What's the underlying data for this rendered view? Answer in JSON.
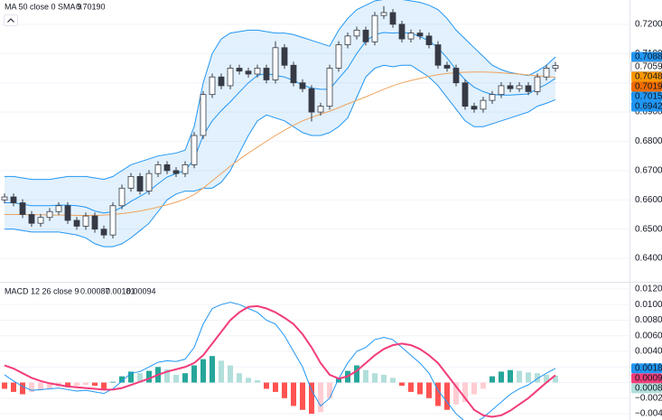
{
  "chart_data": [
    {
      "type": "candlestick",
      "indicator_label": "MA 50 close 0 SMA 9",
      "indicator_value": {
        "value": 0.7019,
        "label": "0.70190",
        "color": "#f57c00"
      },
      "ylim": [
        0.632,
        0.7283
      ],
      "yticks": [
        {
          "value": 0.64,
          "label": "0.64000"
        },
        {
          "value": 0.65,
          "label": "0.65000"
        },
        {
          "value": 0.66,
          "label": "0.66000"
        },
        {
          "value": 0.67,
          "label": "0.67000"
        },
        {
          "value": 0.68,
          "label": "0.68000"
        },
        {
          "value": 0.69,
          "label": "0.69000"
        },
        {
          "value": 0.7,
          "label": "0.70000"
        },
        {
          "value": 0.71,
          "label": "0.71000"
        },
        {
          "value": 0.72,
          "label": "0.72000"
        }
      ],
      "grid": true,
      "up_color": "#ffffff",
      "down_color": "#363a45",
      "wick_color": "#363a45",
      "open": [
        0.66,
        0.661,
        0.659,
        0.655,
        0.652,
        0.654,
        0.656,
        0.658,
        0.653,
        0.651,
        0.6545,
        0.65,
        0.648,
        0.658,
        0.664,
        0.668,
        0.663,
        0.669,
        0.672,
        0.67,
        0.669,
        0.672,
        0.682,
        0.696,
        0.702,
        0.699,
        0.705,
        0.704,
        0.703,
        0.705,
        0.701,
        0.712,
        0.706,
        0.7,
        0.698,
        0.69,
        0.692,
        0.705,
        0.713,
        0.716,
        0.718,
        0.714,
        0.723,
        0.724,
        0.72,
        0.715,
        0.717,
        0.716,
        0.713,
        0.706,
        0.705,
        0.7,
        0.692,
        0.691,
        0.694,
        0.696,
        0.699,
        0.698,
        0.699,
        0.697,
        0.702,
        0.705
      ],
      "high": [
        0.6622,
        0.6622,
        0.6602,
        0.6562,
        0.6552,
        0.6572,
        0.6592,
        0.6592,
        0.6542,
        0.6557,
        0.6557,
        0.6512,
        0.6592,
        0.6652,
        0.6692,
        0.6692,
        0.6702,
        0.6732,
        0.6732,
        0.6712,
        0.6732,
        0.6832,
        0.6972,
        0.7032,
        0.7032,
        0.7062,
        0.7062,
        0.7052,
        0.7062,
        0.7062,
        0.7142,
        0.7132,
        0.7072,
        0.7012,
        0.6992,
        0.6932,
        0.7062,
        0.7142,
        0.7172,
        0.7192,
        0.7192,
        0.7242,
        0.7262,
        0.7252,
        0.7212,
        0.7182,
        0.7182,
        0.7172,
        0.7142,
        0.7072,
        0.7062,
        0.7012,
        0.6932,
        0.6952,
        0.6972,
        0.7002,
        0.7002,
        0.7002,
        0.7002,
        0.7032,
        0.7062,
        0.7071
      ],
      "low": [
        0.6588,
        0.6578,
        0.6538,
        0.6508,
        0.6508,
        0.6528,
        0.6548,
        0.6518,
        0.6498,
        0.6498,
        0.6488,
        0.6468,
        0.6468,
        0.6568,
        0.6628,
        0.6618,
        0.6618,
        0.6678,
        0.6688,
        0.6678,
        0.6678,
        0.6708,
        0.6808,
        0.6948,
        0.6978,
        0.6978,
        0.7028,
        0.7018,
        0.7018,
        0.6998,
        0.6998,
        0.7048,
        0.6988,
        0.6968,
        0.6868,
        0.6888,
        0.6908,
        0.7038,
        0.7118,
        0.7148,
        0.7128,
        0.7128,
        0.7218,
        0.7188,
        0.7138,
        0.7138,
        0.7148,
        0.7118,
        0.7048,
        0.7038,
        0.6988,
        0.6908,
        0.6898,
        0.6898,
        0.6928,
        0.6948,
        0.6968,
        0.6968,
        0.6958,
        0.6958,
        0.7008,
        0.7038
      ],
      "close": [
        0.661,
        0.659,
        0.655,
        0.652,
        0.654,
        0.656,
        0.658,
        0.653,
        0.651,
        0.6545,
        0.65,
        0.648,
        0.658,
        0.664,
        0.668,
        0.663,
        0.669,
        0.672,
        0.67,
        0.669,
        0.672,
        0.682,
        0.696,
        0.702,
        0.699,
        0.705,
        0.704,
        0.703,
        0.705,
        0.701,
        0.712,
        0.706,
        0.7,
        0.698,
        0.69,
        0.692,
        0.705,
        0.713,
        0.716,
        0.718,
        0.714,
        0.723,
        0.724,
        0.72,
        0.715,
        0.717,
        0.716,
        0.713,
        0.706,
        0.705,
        0.7,
        0.692,
        0.691,
        0.694,
        0.696,
        0.699,
        0.698,
        0.699,
        0.697,
        0.702,
        0.705,
        0.70593
      ],
      "band_fill": "rgba(33,150,243,0.13)",
      "overlays": [
        {
          "color": "#2196f3",
          "values": [
            0.668,
            0.668,
            0.6675,
            0.667,
            0.667,
            0.667,
            0.6675,
            0.668,
            0.668,
            0.668,
            0.6675,
            0.667,
            0.668,
            0.67,
            0.672,
            0.673,
            0.674,
            0.675,
            0.6755,
            0.676,
            0.677,
            0.685,
            0.7,
            0.71,
            0.715,
            0.717,
            0.7175,
            0.718,
            0.718,
            0.7175,
            0.717,
            0.717,
            0.7165,
            0.7155,
            0.7145,
            0.7135,
            0.7125,
            0.718,
            0.722,
            0.725,
            0.7265,
            0.728,
            0.7285,
            0.7285,
            0.7285,
            0.728,
            0.7275,
            0.7265,
            0.725,
            0.722,
            0.718,
            0.715,
            0.712,
            0.709,
            0.706,
            0.7045,
            0.7035,
            0.703,
            0.7025,
            0.704,
            0.706,
            0.70886
          ]
        },
        {
          "color": "#2196f3",
          "values": [
            0.659,
            0.659,
            0.6585,
            0.658,
            0.658,
            0.658,
            0.6582,
            0.6582,
            0.658,
            0.6575,
            0.6562,
            0.6555,
            0.656,
            0.6575,
            0.6595,
            0.6612,
            0.663,
            0.6655,
            0.6678,
            0.669,
            0.67,
            0.674,
            0.682,
            0.687,
            0.6905,
            0.6935,
            0.6968,
            0.7,
            0.7025,
            0.7032,
            0.7025,
            0.702,
            0.7008,
            0.6992,
            0.6982,
            0.6978,
            0.6978,
            0.7015,
            0.705,
            0.71,
            0.7142,
            0.7165,
            0.7172,
            0.717,
            0.7172,
            0.717,
            0.7158,
            0.7143,
            0.712,
            0.7085,
            0.7045,
            0.701,
            0.6985,
            0.697,
            0.696,
            0.6958,
            0.6958,
            0.696,
            0.6962,
            0.698,
            0.6995,
            0.70154
          ]
        },
        {
          "color": "#2196f3",
          "values": [
            0.65,
            0.65,
            0.6495,
            0.649,
            0.649,
            0.649,
            0.649,
            0.6485,
            0.648,
            0.647,
            0.645,
            0.644,
            0.644,
            0.645,
            0.647,
            0.6495,
            0.652,
            0.656,
            0.66,
            0.662,
            0.663,
            0.663,
            0.664,
            0.664,
            0.666,
            0.67,
            0.676,
            0.682,
            0.687,
            0.689,
            0.688,
            0.687,
            0.685,
            0.683,
            0.682,
            0.682,
            0.683,
            0.685,
            0.688,
            0.695,
            0.702,
            0.705,
            0.706,
            0.7055,
            0.706,
            0.706,
            0.704,
            0.702,
            0.699,
            0.695,
            0.691,
            0.687,
            0.685,
            0.685,
            0.686,
            0.687,
            0.688,
            0.689,
            0.69,
            0.692,
            0.693,
            0.69421
          ]
        },
        {
          "color": "#f0a35e",
          "values": [
            0.655,
            0.655,
            0.655,
            0.6549,
            0.6549,
            0.6548,
            0.6548,
            0.6548,
            0.6547,
            0.6547,
            0.6547,
            0.6548,
            0.655,
            0.6553,
            0.6557,
            0.6562,
            0.6568,
            0.6575,
            0.6583,
            0.6592,
            0.6603,
            0.6618,
            0.664,
            0.6665,
            0.669,
            0.6715,
            0.6738,
            0.676,
            0.678,
            0.68,
            0.682,
            0.6838,
            0.6855,
            0.687,
            0.6882,
            0.6893,
            0.6903,
            0.6915,
            0.6928,
            0.694,
            0.6952,
            0.6965,
            0.6978,
            0.699,
            0.7,
            0.7008,
            0.7015,
            0.7022,
            0.7028,
            0.7032,
            0.7035,
            0.7036,
            0.7037,
            0.7037,
            0.7036,
            0.7034,
            0.7032,
            0.703,
            0.7027,
            0.7024,
            0.7021,
            0.7019
          ]
        }
      ],
      "price_labels": [
        {
          "value": 0.70886,
          "label": "0.70886",
          "color": "#2196f3",
          "text_color": "#ffffff"
        },
        {
          "value": 0.70593,
          "label": "0.70593",
          "color": "#ffffff",
          "text_color": "#131722"
        },
        {
          "value": 0.70487,
          "label": "0.70487",
          "color": "#ff9800",
          "text_color": "#131722"
        },
        {
          "value": 0.7019,
          "label": "0.70190",
          "color": "#ef6c00",
          "text_color": "#ffffff"
        },
        {
          "value": 0.70154,
          "label": "0.70154",
          "color": "#2196f3",
          "text_color": "#ffffff"
        },
        {
          "value": 0.69421,
          "label": "0.69421",
          "color": "#2196f3",
          "text_color": "#ffffff"
        }
      ]
    },
    {
      "type": "macd",
      "title": "MACD 12 26 close 9",
      "ylim": [
        -0.0048,
        0.0128
      ],
      "yticks": [
        {
          "value": 0.012,
          "label": "0.01200"
        },
        {
          "value": 0.01,
          "label": "0.01000"
        },
        {
          "value": 0.008,
          "label": "0.00800"
        },
        {
          "value": 0.006,
          "label": "0.00600"
        },
        {
          "value": 0.004,
          "label": "0.00400"
        },
        {
          "value": 0.002,
          "label": "0.00200"
        },
        {
          "value": 0,
          "label": "0.00000"
        },
        {
          "value": -0.002,
          "label": "−0.00200"
        },
        {
          "value": -0.004,
          "label": "−0.00400"
        }
      ],
      "grid": true,
      "histogram": {
        "colors": {
          "pos_rise": "#26a69a",
          "pos_fall": "#b2dfdb",
          "neg_fall": "#ff5252",
          "neg_rise": "#ffcdd2"
        },
        "label": {
          "value": 0.00087,
          "label": "0.00087",
          "color": "#b2dfdb"
        },
        "values": [
          -0.0008,
          -0.0012,
          -0.0015,
          -0.0012,
          -0.001,
          -0.0008,
          -0.0005,
          -0.0006,
          -0.0004,
          -0.0003,
          -0.0004,
          -0.0008,
          0.0001,
          0.0008,
          0.0014,
          0.0012,
          0.0015,
          0.002,
          0.0017,
          0.001,
          0.0012,
          0.0022,
          0.003,
          0.0034,
          0.0028,
          0.0022,
          0.0012,
          0.0006,
          0.0003,
          -0.0008,
          -0.0012,
          -0.002,
          -0.003,
          -0.0035,
          -0.004,
          -0.0038,
          -0.002,
          0.0005,
          0.0015,
          0.0022,
          0.0016,
          0.0012,
          0.001,
          0.0006,
          -0.0004,
          -0.0012,
          -0.0015,
          -0.002,
          -0.003,
          -0.0035,
          -0.0028,
          -0.0025,
          -0.0015,
          -0.0008,
          0.0008,
          0.0014,
          0.0016,
          0.0015,
          0.0013,
          0.0012,
          0.001,
          0.00087
        ]
      },
      "series": [
        {
          "color": "#2196f3",
          "label": {
            "value": 0.00181,
            "label": "0.00181"
          },
          "values": [
            0.001,
            0.0002,
            -0.0005,
            -0.001,
            -0.0009,
            -0.0008,
            -0.0007,
            -0.0009,
            -0.0011,
            -0.001,
            -0.0012,
            -0.0014,
            -0.0008,
            0.0002,
            0.0012,
            0.0014,
            0.002,
            0.0026,
            0.0028,
            0.0027,
            0.003,
            0.0045,
            0.0075,
            0.0095,
            0.01,
            0.0103,
            0.01,
            0.0095,
            0.009,
            0.008,
            0.0075,
            0.006,
            0.004,
            0.002,
            -0.001,
            -0.003,
            -0.002,
            0.0005,
            0.0025,
            0.004,
            0.0045,
            0.0055,
            0.0058,
            0.0055,
            0.0045,
            0.0035,
            0.0025,
            0.0012,
            -0.001,
            -0.0025,
            -0.004,
            -0.005,
            -0.0052,
            -0.0045,
            -0.0035,
            -0.0025,
            -0.0015,
            -0.0008,
            -0.0003,
            0.0005,
            0.0012,
            0.00181
          ]
        },
        {
          "color": "#f23d7a",
          "label": {
            "value": 0.00094,
            "label": "0.00094"
          },
          "values": [
            0.0022,
            0.0018,
            0.0012,
            0.0006,
            0.0002,
            -0.0001,
            -0.0003,
            -0.0005,
            -0.0006,
            -0.0007,
            -0.0008,
            -0.0009,
            -0.0009,
            -0.0007,
            -0.0003,
            0.0001,
            0.0005,
            0.001,
            0.0014,
            0.0017,
            0.002,
            0.0025,
            0.0035,
            0.005,
            0.0065,
            0.008,
            0.009,
            0.0097,
            0.0098,
            0.0095,
            0.009,
            0.0083,
            0.0075,
            0.0062,
            0.0045,
            0.0025,
            0.001,
            0.0005,
            0.0008,
            0.0015,
            0.0025,
            0.0035,
            0.0043,
            0.0048,
            0.005,
            0.0048,
            0.0043,
            0.0035,
            0.0025,
            0.001,
            -0.0005,
            -0.002,
            -0.0035,
            -0.0042,
            -0.0044,
            -0.0042,
            -0.0036,
            -0.0028,
            -0.002,
            -0.001,
            0.0,
            0.00094
          ]
        }
      ]
    }
  ]
}
